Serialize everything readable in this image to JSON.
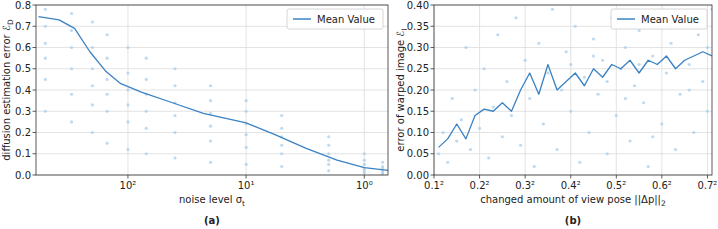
{
  "chart_data": [
    {
      "type": "scatter",
      "title": "(a)",
      "xlabel": "noise level σt",
      "ylabel": "diffusion estimation error ℰD",
      "log": "x",
      "grid": true,
      "legend": "upper right",
      "xlim": [
        600,
        0.63
      ],
      "ylim": [
        0,
        0.8
      ],
      "xticks": [
        {
          "value": 100,
          "label": "10²"
        },
        {
          "value": 10,
          "label": "10¹"
        },
        {
          "value": 1,
          "label": "10⁰"
        }
      ],
      "yticks": [
        {
          "value": 0,
          "label": "0.0"
        },
        0.1,
        0.2,
        0.3,
        0.4,
        0.5,
        0.6,
        0.7,
        0.8
      ],
      "series": [
        {
          "type": "scatter",
          "color": "#a9cce9",
          "marker": "circle",
          "x": [
            500,
            500,
            500,
            500,
            500,
            500,
            300,
            300,
            300,
            300,
            300,
            300,
            200,
            200,
            200,
            200,
            200,
            200,
            150,
            150,
            150,
            150,
            150,
            150,
            100,
            100,
            100,
            100,
            100,
            100,
            70,
            70,
            70,
            70,
            70,
            70,
            40,
            40,
            40,
            40,
            40,
            40,
            20,
            20,
            20,
            20,
            20,
            20,
            10,
            10,
            10,
            10,
            10,
            10,
            5,
            5,
            5,
            5,
            5,
            5,
            2,
            2,
            2,
            2,
            2,
            2,
            1,
            1,
            1,
            1,
            1,
            1,
            0.7,
            0.7,
            0.7,
            0.7,
            0.7,
            0.7
          ],
          "values": [
            0.78,
            0.7,
            0.62,
            0.55,
            0.45,
            0.3,
            0.76,
            0.68,
            0.6,
            0.5,
            0.38,
            0.25,
            0.72,
            0.6,
            0.5,
            0.42,
            0.33,
            0.2,
            0.66,
            0.55,
            0.45,
            0.38,
            0.3,
            0.15,
            0.6,
            0.48,
            0.4,
            0.33,
            0.25,
            0.12,
            0.55,
            0.45,
            0.38,
            0.3,
            0.22,
            0.1,
            0.5,
            0.42,
            0.34,
            0.28,
            0.2,
            0.08,
            0.42,
            0.35,
            0.29,
            0.23,
            0.16,
            0.06,
            0.35,
            0.3,
            0.24,
            0.19,
            0.13,
            0.05,
            0.28,
            0.22,
            0.18,
            0.14,
            0.1,
            0.04,
            0.18,
            0.14,
            0.1,
            0.07,
            0.05,
            0.02,
            0.1,
            0.07,
            0.05,
            0.03,
            0.02,
            0.01,
            0.06,
            0.04,
            0.03,
            0.02,
            0.01,
            0.005
          ]
        },
        {
          "name": "Mean Value",
          "type": "line",
          "color": "#3a82c4",
          "line_style": "solid",
          "x": [
            571,
            383,
            283,
            210,
            155,
            115,
            77,
            42,
            23,
            10,
            5.7,
            3.1,
            1.7,
            1,
            0.6
          ],
          "values": [
            0.745,
            0.73,
            0.69,
            0.58,
            0.49,
            0.43,
            0.39,
            0.34,
            0.29,
            0.245,
            0.19,
            0.125,
            0.07,
            0.035,
            0.02
          ]
        }
      ]
    },
    {
      "type": "scatter",
      "title": "(b)",
      "xlabel": "changed amount of view pose ||Δp||2",
      "ylabel": "error of warped image ℰI",
      "grid": true,
      "legend": "upper right",
      "xlim": [
        0.1,
        0.71
      ],
      "ylim": [
        0,
        0.4
      ],
      "xticks": [
        {
          "value": 0.1,
          "label": "0.1²"
        },
        {
          "value": 0.2,
          "label": "0.2²"
        },
        {
          "value": 0.3,
          "label": "0.3²"
        },
        {
          "value": 0.4,
          "label": "0.4²"
        },
        {
          "value": 0.5,
          "label": "0.5²"
        },
        {
          "value": 0.6,
          "label": "0.6²"
        },
        {
          "value": 0.7,
          "label": "0.7²"
        }
      ],
      "yticks": [
        {
          "value": 0,
          "label": "0.00"
        },
        {
          "value": 0.05,
          "label": "0.05"
        },
        {
          "value": 0.1,
          "label": "0.10"
        },
        {
          "value": 0.15,
          "label": "0.15"
        },
        {
          "value": 0.2,
          "label": "0.20"
        },
        {
          "value": 0.25,
          "label": "0.25"
        },
        {
          "value": 0.3,
          "label": "0.30"
        },
        {
          "value": 0.35,
          "label": "0.35"
        },
        {
          "value": 0.4,
          "label": "0.40"
        }
      ],
      "series": [
        {
          "type": "scatter",
          "color": "#a9cce9",
          "marker": "circle",
          "x": [
            0.11,
            0.12,
            0.13,
            0.14,
            0.15,
            0.16,
            0.17,
            0.18,
            0.19,
            0.2,
            0.21,
            0.22,
            0.23,
            0.24,
            0.25,
            0.26,
            0.27,
            0.28,
            0.29,
            0.3,
            0.31,
            0.32,
            0.33,
            0.34,
            0.35,
            0.36,
            0.37,
            0.38,
            0.39,
            0.4,
            0.41,
            0.42,
            0.43,
            0.44,
            0.45,
            0.46,
            0.47,
            0.48,
            0.49,
            0.5,
            0.51,
            0.52,
            0.53,
            0.54,
            0.55,
            0.56,
            0.57,
            0.58,
            0.59,
            0.6,
            0.61,
            0.62,
            0.63,
            0.64,
            0.65,
            0.66,
            0.67,
            0.68,
            0.69,
            0.7,
            0.71,
            0.45,
            0.52,
            0.58,
            0.62,
            0.66,
            0.7,
            0.55,
            0.48,
            0.4
          ],
          "values": [
            0.05,
            0.1,
            0.03,
            0.18,
            0.08,
            0.13,
            0.3,
            0.06,
            0.2,
            0.11,
            0.25,
            0.04,
            0.16,
            0.33,
            0.09,
            0.22,
            0.14,
            0.37,
            0.07,
            0.27,
            0.18,
            0.02,
            0.31,
            0.12,
            0.24,
            0.39,
            0.06,
            0.2,
            0.29,
            0.15,
            0.35,
            0.03,
            0.23,
            0.1,
            0.32,
            0.19,
            0.27,
            0.05,
            0.37,
            0.14,
            0.25,
            0.3,
            0.08,
            0.21,
            0.34,
            0.17,
            0.02,
            0.28,
            0.38,
            0.12,
            0.24,
            0.31,
            0.06,
            0.19,
            0.36,
            0.26,
            0.1,
            0.33,
            0.22,
            0.15,
            0.39,
            0.28,
            0.18,
            0.09,
            0.35,
            0.2,
            0.3,
            0.26,
            0.22,
            0.26
          ]
        },
        {
          "name": "Mean Value",
          "type": "line",
          "color": "#3a82c4",
          "line_style": "solid",
          "x": [
            0.11,
            0.13,
            0.15,
            0.17,
            0.19,
            0.21,
            0.23,
            0.25,
            0.27,
            0.29,
            0.31,
            0.33,
            0.35,
            0.37,
            0.39,
            0.41,
            0.43,
            0.45,
            0.47,
            0.49,
            0.51,
            0.53,
            0.55,
            0.57,
            0.59,
            0.61,
            0.63,
            0.65,
            0.67,
            0.69,
            0.71
          ],
          "values": [
            0.065,
            0.085,
            0.12,
            0.085,
            0.14,
            0.155,
            0.15,
            0.17,
            0.15,
            0.2,
            0.24,
            0.19,
            0.26,
            0.2,
            0.22,
            0.24,
            0.21,
            0.25,
            0.23,
            0.26,
            0.25,
            0.27,
            0.24,
            0.27,
            0.26,
            0.28,
            0.25,
            0.27,
            0.28,
            0.29,
            0.28
          ]
        }
      ]
    }
  ]
}
